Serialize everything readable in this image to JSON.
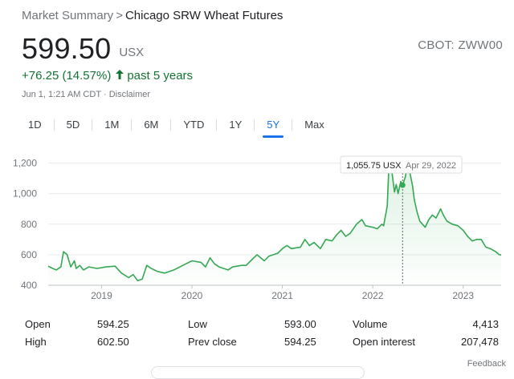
{
  "breadcrumb": {
    "root": "Market Summary",
    "separator": ">",
    "current": "Chicago SRW Wheat Futures"
  },
  "quote": {
    "price": "599.50",
    "currency": "USX",
    "ticker": "CBOT: ZWW00",
    "change": "+76.25 (14.57%)",
    "change_period": "past 5 years",
    "timestamp": "Jun 1, 1:21 AM CDT",
    "timestamp_sep": "·",
    "disclaimer": "Disclaimer"
  },
  "colors": {
    "up": "#137333",
    "line": "#34a853",
    "accent": "#1a73e8",
    "muted": "#70757a"
  },
  "icons": {
    "change_arrow": "arrow-up-icon"
  },
  "ranges": [
    {
      "label": "1D"
    },
    {
      "label": "5D"
    },
    {
      "label": "1M"
    },
    {
      "label": "6M"
    },
    {
      "label": "YTD"
    },
    {
      "label": "1Y"
    },
    {
      "label": "5Y",
      "active": true
    },
    {
      "label": "Max"
    }
  ],
  "tooltip": {
    "value": "1,055.75 USX",
    "date": "Apr 29, 2022"
  },
  "chart_data": {
    "type": "area",
    "ylim": [
      400,
      1250
    ],
    "yticks": [
      400,
      600,
      800,
      1000,
      1200
    ],
    "ytick_labels": [
      "400",
      "600",
      "800",
      "1,000",
      "1,200"
    ],
    "xlim": [
      2018.41,
      2023.42
    ],
    "xticks": [
      2019,
      2020,
      2021,
      2022,
      2023
    ],
    "xtick_labels": [
      "2019",
      "2020",
      "2021",
      "2022",
      "2023"
    ],
    "grid": "horizontal",
    "highlight": {
      "x": 2022.33,
      "y": 1055.75
    },
    "series": [
      {
        "points": [
          [
            2018.41,
            525
          ],
          [
            2018.46,
            510
          ],
          [
            2018.5,
            500
          ],
          [
            2018.55,
            520
          ],
          [
            2018.58,
            620
          ],
          [
            2018.62,
            600
          ],
          [
            2018.66,
            520
          ],
          [
            2018.7,
            560
          ],
          [
            2018.72,
            510
          ],
          [
            2018.76,
            530
          ],
          [
            2018.8,
            500
          ],
          [
            2018.86,
            520
          ],
          [
            2018.95,
            510
          ],
          [
            2019.05,
            520
          ],
          [
            2019.15,
            525
          ],
          [
            2019.22,
            480
          ],
          [
            2019.3,
            450
          ],
          [
            2019.35,
            470
          ],
          [
            2019.4,
            430
          ],
          [
            2019.45,
            440
          ],
          [
            2019.5,
            530
          ],
          [
            2019.55,
            510
          ],
          [
            2019.62,
            490
          ],
          [
            2019.7,
            480
          ],
          [
            2019.8,
            500
          ],
          [
            2019.9,
            530
          ],
          [
            2020.0,
            560
          ],
          [
            2020.1,
            550
          ],
          [
            2020.15,
            520
          ],
          [
            2020.2,
            580
          ],
          [
            2020.25,
            540
          ],
          [
            2020.3,
            520
          ],
          [
            2020.4,
            500
          ],
          [
            2020.45,
            520
          ],
          [
            2020.55,
            530
          ],
          [
            2020.6,
            530
          ],
          [
            2020.65,
            560
          ],
          [
            2020.72,
            600
          ],
          [
            2020.76,
            580
          ],
          [
            2020.8,
            560
          ],
          [
            2020.85,
            590
          ],
          [
            2020.95,
            610
          ],
          [
            2021.0,
            640
          ],
          [
            2021.05,
            660
          ],
          [
            2021.1,
            640
          ],
          [
            2021.2,
            650
          ],
          [
            2021.25,
            700
          ],
          [
            2021.3,
            660
          ],
          [
            2021.35,
            680
          ],
          [
            2021.42,
            640
          ],
          [
            2021.48,
            700
          ],
          [
            2021.55,
            690
          ],
          [
            2021.6,
            730
          ],
          [
            2021.65,
            760
          ],
          [
            2021.7,
            720
          ],
          [
            2021.75,
            740
          ],
          [
            2021.82,
            800
          ],
          [
            2021.88,
            830
          ],
          [
            2021.92,
            790
          ],
          [
            2022.0,
            780
          ],
          [
            2022.05,
            770
          ],
          [
            2022.1,
            800
          ],
          [
            2022.12,
            790
          ],
          [
            2022.16,
            920
          ],
          [
            2022.18,
            1200
          ],
          [
            2022.21,
            1150
          ],
          [
            2022.24,
            1010
          ],
          [
            2022.26,
            1060
          ],
          [
            2022.28,
            1000
          ],
          [
            2022.31,
            1080
          ],
          [
            2022.33,
            1056
          ],
          [
            2022.36,
            1110
          ],
          [
            2022.38,
            1180
          ],
          [
            2022.41,
            1140
          ],
          [
            2022.44,
            1050
          ],
          [
            2022.46,
            960
          ],
          [
            2022.49,
            880
          ],
          [
            2022.52,
            820
          ],
          [
            2022.55,
            800
          ],
          [
            2022.58,
            780
          ],
          [
            2022.62,
            830
          ],
          [
            2022.66,
            860
          ],
          [
            2022.7,
            840
          ],
          [
            2022.75,
            900
          ],
          [
            2022.78,
            860
          ],
          [
            2022.82,
            820
          ],
          [
            2022.88,
            800
          ],
          [
            2022.94,
            790
          ],
          [
            2023.0,
            760
          ],
          [
            2023.05,
            720
          ],
          [
            2023.1,
            690
          ],
          [
            2023.15,
            700
          ],
          [
            2023.2,
            700
          ],
          [
            2023.25,
            650
          ],
          [
            2023.3,
            640
          ],
          [
            2023.36,
            620
          ],
          [
            2023.4,
            600
          ],
          [
            2023.42,
            600
          ]
        ]
      }
    ]
  },
  "stats": [
    [
      {
        "label": "Open",
        "value": "594.25"
      },
      {
        "label": "Low",
        "value": "593.00"
      },
      {
        "label": "Volume",
        "value": "4,413"
      }
    ],
    [
      {
        "label": "High",
        "value": "602.50"
      },
      {
        "label": "Prev close",
        "value": "594.25"
      },
      {
        "label": "Open interest",
        "value": "207,478"
      }
    ]
  ],
  "feedback": "Feedback"
}
